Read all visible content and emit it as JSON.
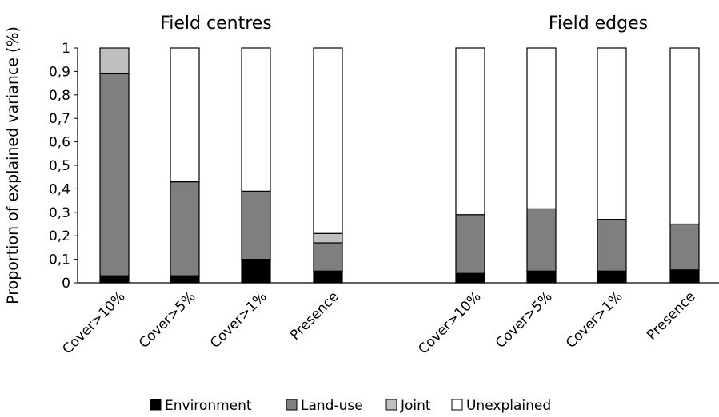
{
  "chart_data": {
    "type": "bar",
    "stacked": true,
    "ylabel": "Proportion of explained variance (%)",
    "ylim": [
      0,
      1
    ],
    "yticks": [
      "0",
      "0,1",
      "0,2",
      "0,3",
      "0,4",
      "0,5",
      "0,6",
      "0,7",
      "0,8",
      "0,9",
      "1"
    ],
    "grid": false,
    "legend_position": "bottom",
    "panels": [
      {
        "title": "Field centres",
        "categories": [
          "Cover>10%",
          "Cover>5%",
          "Cover>1%",
          "Presence"
        ],
        "series": [
          {
            "name": "Environment",
            "values": [
              0.03,
              0.03,
              0.1,
              0.05
            ]
          },
          {
            "name": "Land-use",
            "values": [
              0.86,
              0.4,
              0.29,
              0.12
            ]
          },
          {
            "name": "Joint",
            "values": [
              0.11,
              0.0,
              0.0,
              0.04
            ]
          },
          {
            "name": "Unexplained",
            "values": [
              0.0,
              0.57,
              0.61,
              0.79
            ]
          }
        ]
      },
      {
        "title": "Field edges",
        "categories": [
          "Cover>10%",
          "Cover>5%",
          "Cover>1%",
          "Presence"
        ],
        "series": [
          {
            "name": "Environment",
            "values": [
              0.04,
              0.05,
              0.05,
              0.055
            ]
          },
          {
            "name": "Land-use",
            "values": [
              0.25,
              0.265,
              0.22,
              0.195
            ]
          },
          {
            "name": "Joint",
            "values": [
              0.0,
              0.0,
              0.0,
              0.0
            ]
          },
          {
            "name": "Unexplained",
            "values": [
              0.71,
              0.685,
              0.73,
              0.75
            ]
          }
        ]
      }
    ],
    "colors": {
      "Environment": "#000000",
      "Land-use": "#7f7f7f",
      "Joint": "#bfbfbf",
      "Unexplained": "#ffffff"
    }
  }
}
